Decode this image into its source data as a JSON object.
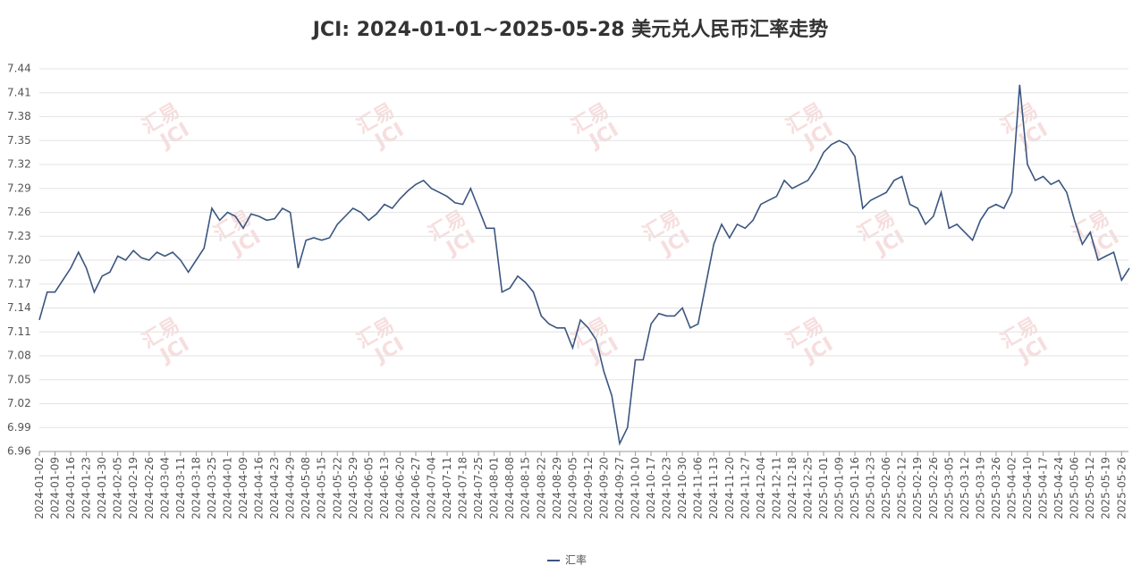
{
  "chart_data": {
    "type": "line",
    "title": "JCI: 2024-01-01~2025-05-28 美元兑人民币汇率走势",
    "watermark": [
      "汇易",
      "JCI"
    ],
    "categories": [
      "2024-01-02",
      null,
      "2024-01-09",
      null,
      "2024-01-16",
      null,
      "2024-01-23",
      null,
      "2024-01-30",
      null,
      "2024-02-05",
      null,
      "2024-02-19",
      null,
      "2024-02-26",
      null,
      "2024-03-04",
      null,
      "2024-03-11",
      null,
      "2024-03-18",
      null,
      "2024-03-25",
      null,
      "2024-04-01",
      null,
      "2024-04-09",
      null,
      "2024-04-16",
      null,
      "2024-04-23",
      null,
      "2024-04-29",
      null,
      "2024-05-08",
      null,
      "2024-05-15",
      null,
      "2024-05-22",
      null,
      "2024-05-29",
      null,
      "2024-06-05",
      null,
      "2024-06-13",
      null,
      "2024-06-20",
      null,
      "2024-06-27",
      null,
      "2024-07-04",
      null,
      "2024-07-11",
      null,
      "2024-07-18",
      null,
      "2024-07-25",
      null,
      "2024-08-01",
      null,
      "2024-08-08",
      null,
      "2024-08-15",
      null,
      "2024-08-22",
      null,
      "2024-08-29",
      null,
      "2024-09-05",
      null,
      "2024-09-12",
      null,
      "2024-09-20",
      null,
      "2024-09-27",
      null,
      "2024-10-10",
      null,
      "2024-10-17",
      null,
      "2024-10-23",
      null,
      "2024-10-30",
      null,
      "2024-11-06",
      null,
      "2024-11-13",
      null,
      "2024-11-20",
      null,
      "2024-11-27",
      null,
      "2024-12-04",
      null,
      "2024-12-11",
      null,
      "2024-12-18",
      null,
      "2024-12-25",
      null,
      "2025-01-01",
      null,
      "2025-01-09",
      null,
      "2025-01-16",
      null,
      "2025-01-23",
      null,
      "2025-02-06",
      null,
      "2025-02-12",
      null,
      "2025-02-19",
      null,
      "2025-02-26",
      null,
      "2025-03-05",
      null,
      "2025-03-12",
      null,
      "2025-03-19",
      null,
      "2025-03-26",
      null,
      "2025-04-02",
      null,
      "2025-04-10",
      null,
      "2025-04-17",
      null,
      "2025-04-24",
      null,
      "2025-05-06",
      null,
      "2025-05-12",
      null,
      "2025-05-19",
      null,
      "2025-05-26",
      null
    ],
    "series": [
      {
        "name": "汇率",
        "color": "#3b5680",
        "values": [
          7.125,
          7.16,
          7.16,
          7.175,
          7.19,
          7.21,
          7.19,
          7.16,
          7.18,
          7.185,
          7.205,
          7.2,
          7.212,
          7.203,
          7.2,
          7.21,
          7.205,
          7.21,
          7.2,
          7.185,
          7.2,
          7.215,
          7.265,
          7.25,
          7.26,
          7.255,
          7.24,
          7.258,
          7.255,
          7.25,
          7.252,
          7.265,
          7.26,
          7.19,
          7.225,
          7.228,
          7.225,
          7.228,
          7.245,
          7.255,
          7.265,
          7.26,
          7.25,
          7.258,
          7.27,
          7.265,
          7.277,
          7.287,
          7.295,
          7.3,
          7.29,
          7.285,
          7.28,
          7.272,
          7.27,
          7.29,
          7.265,
          7.24,
          7.24,
          7.16,
          7.165,
          7.18,
          7.172,
          7.16,
          7.13,
          7.12,
          7.115,
          7.115,
          7.09,
          7.125,
          7.115,
          7.1,
          7.06,
          7.03,
          6.97,
          6.99,
          7.075,
          7.075,
          7.12,
          7.133,
          7.13,
          7.13,
          7.14,
          7.115,
          7.12,
          7.17,
          7.22,
          7.245,
          7.228,
          7.245,
          7.24,
          7.25,
          7.27,
          7.275,
          7.28,
          7.3,
          7.29,
          7.295,
          7.3,
          7.315,
          7.335,
          7.345,
          7.35,
          7.345,
          7.33,
          7.265,
          7.275,
          7.28,
          7.285,
          7.3,
          7.305,
          7.27,
          7.265,
          7.245,
          7.255,
          7.285,
          7.24,
          7.245,
          7.235,
          7.225,
          7.25,
          7.265,
          7.27,
          7.265,
          7.285,
          7.42,
          7.32,
          7.3,
          7.305,
          7.295,
          7.3,
          7.285,
          7.25,
          7.22,
          7.235,
          7.2,
          7.205,
          7.21,
          7.175,
          7.19
        ]
      }
    ],
    "ylim": [
      6.96,
      7.44
    ],
    "yticks": [
      6.96,
      6.99,
      7.02,
      7.05,
      7.08,
      7.11,
      7.14,
      7.17,
      {
        "value": 7.2,
        "label": "7.20"
      },
      7.23,
      7.26,
      7.29,
      7.32,
      7.35,
      7.38,
      7.41,
      7.44
    ],
    "grid": true,
    "legend": "bottom"
  }
}
